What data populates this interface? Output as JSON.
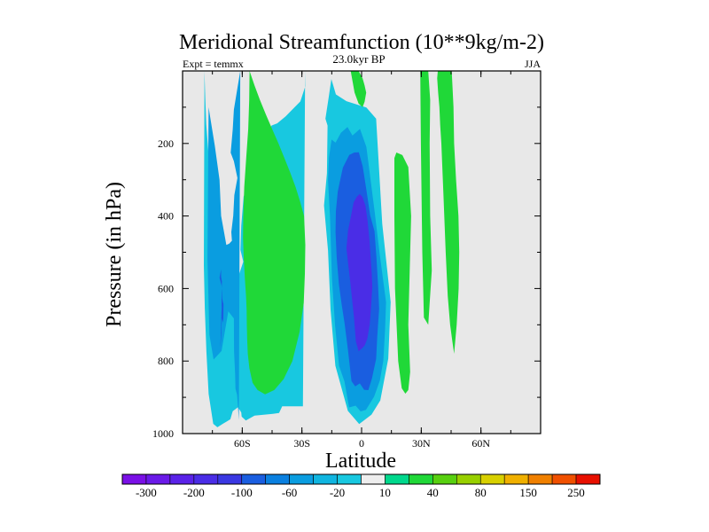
{
  "chart_data": {
    "type": "contour",
    "title": "Meridional Streamfunction (10**9kg/m-2)",
    "subtitle": "23.0kyr BP",
    "left_label": "Expt = temmx",
    "right_label": "JJA",
    "xlabel": "Latitude",
    "ylabel": "Pressure (in hPa)",
    "x_ticks": [
      {
        "value": -60,
        "label": "60S"
      },
      {
        "value": -30,
        "label": "30S"
      },
      {
        "value": 0,
        "label": "0"
      },
      {
        "value": 30,
        "label": "30N"
      },
      {
        "value": 60,
        "label": "60N"
      }
    ],
    "y_ticks": [
      {
        "value": 200,
        "label": "200"
      },
      {
        "value": 400,
        "label": "400"
      },
      {
        "value": 600,
        "label": "600"
      },
      {
        "value": 800,
        "label": "800"
      },
      {
        "value": 1000,
        "label": "1000"
      }
    ],
    "xlim": [
      -90,
      90
    ],
    "ylim": [
      0,
      1000
    ],
    "levels": [
      -300,
      -250,
      -200,
      -150,
      -100,
      -80,
      -60,
      -40,
      -20,
      -10,
      10,
      20,
      40,
      60,
      80,
      100,
      150,
      200,
      250,
      300
    ],
    "colorbar_labels": [
      "-300",
      "-200",
      "-100",
      "-60",
      "-20",
      "10",
      "40",
      "80",
      "150",
      "250"
    ],
    "colors": [
      "#7a10e6",
      "#6a1ae8",
      "#5a22e8",
      "#4a2de6",
      "#3a38e2",
      "#1a5ee0",
      "#0a80e0",
      "#0a9de0",
      "#10b5e0",
      "#18c8e0",
      "#eeeeee",
      "#00d88c",
      "#20d838",
      "#58d010",
      "#98d000",
      "#d8d000",
      "#f0b000",
      "#f08000",
      "#f05000",
      "#e81000"
    ],
    "missing_color": "#e8e8e8",
    "regions": [
      {
        "name": "sh-cell-outer",
        "value": -20,
        "lat": [
          -79,
          -78.6,
          -78.1,
          -77.1,
          -76,
          -73.6,
          -71.3,
          -70.5,
          -69,
          -64,
          -59.5,
          -60.9,
          -60.5,
          -59.3,
          -57.5,
          -56.4,
          -54.1,
          -51.6,
          -51.5,
          -49,
          -47.1,
          -45.2,
          -42.4,
          -38.2,
          -30.8,
          -28.3,
          -28.4,
          -29.5,
          -39.9,
          -41.5,
          -44.6,
          -53.8,
          -58.2,
          -60.3,
          -60.5,
          -62.1,
          -64.8,
          -66,
          -69.6,
          -72.5,
          -74.6,
          -76.9,
          -78,
          -78.8,
          -79.3
        ],
        "p": [
          0,
          72.9,
          145.9,
          220.1,
          301.5,
          377.5,
          458.2,
          538.7,
          576.8,
          601.1,
          525.9,
          493.6,
          427.5,
          345.9,
          325.3,
          287.3,
          269.4,
          248.2,
          213.4,
          188.4,
          167,
          150.4,
          144.4,
          125.1,
          84,
          42.3,
          0,
          925,
          925,
          943.2,
          945.6,
          950.7,
          963.8,
          953.2,
          941.6,
          927.4,
          938.2,
          960.6,
          972.5,
          982.6,
          973.2,
          890.8,
          774,
          655,
          536.7
        ]
      },
      {
        "name": "sh-cell-mid",
        "value": -60,
        "lat": [
          -76.9,
          -76.2,
          -73.8,
          -71.4,
          -70.6,
          -68,
          -66.5,
          -65.2,
          -65.5,
          -64.5,
          -64,
          -62.4,
          -64.2,
          -65.8,
          -64.8,
          -64.2,
          -61,
          -61.7,
          -62.1,
          -62.6,
          -63.4,
          -63.6,
          -64.1,
          -64.2,
          -67,
          -70.4,
          -74.4,
          -76.5,
          -77.5
        ],
        "p": [
          100.1,
          125,
          206.5,
          300.3,
          399.7,
          479.6,
          476.2,
          468.2,
          444.6,
          399.2,
          342.4,
          295,
          248.8,
          225.4,
          161.4,
          106.6,
          0,
          962.3,
          928.8,
          893.1,
          876.3,
          835.9,
          773.3,
          682.5,
          662.8,
          772,
          795.9,
          727.7,
          519.5
        ]
      },
      {
        "name": "sh-cell-inner",
        "value": -100,
        "lat": [
          -70.6,
          -70.6,
          -70.2,
          -70.4,
          -70.4,
          -70.3,
          -70.4,
          -70.5,
          -70.6,
          -71,
          -70.5,
          -70.4,
          -70.2,
          -69.8,
          -69.5,
          -69.4,
          -69.7,
          -70.1,
          -70.4,
          -71.4
        ],
        "p": [
          547.4,
          568.3,
          579.9,
          611,
          652.5,
          646.9,
          658.8,
          666.3,
          704.6,
          764.3,
          723.2,
          700.1,
          682.1,
          694,
          684,
          642.2,
          638.1,
          626.5,
          592,
          570.1
        ]
      },
      {
        "name": "eq-cell-outer",
        "value": -20,
        "lat": [
          -15.2,
          -16.5,
          -18.2,
          -17.1,
          -17.4,
          -18.9,
          -16.9,
          -15.6,
          -13.2,
          -6.9,
          -1.2,
          5,
          9.4,
          13.4,
          14.6,
          10.4,
          7.3,
          2.4,
          -7.6,
          -12.9
        ],
        "p": [
          22.2,
          70.9,
          131.9,
          150.5,
          282.1,
          371,
          494.3,
          658.6,
          812.9,
          937.3,
          973.8,
          947.7,
          908.5,
          793.4,
          637.4,
          421.6,
          131.7,
          100.8,
          83.4,
          64.9
        ]
      },
      {
        "name": "eq-cell-mid",
        "value": -60,
        "lat": [
          -16.9,
          -15.9,
          -14.9,
          -13.3,
          -11.3,
          -8.6,
          -6.3,
          -3,
          -0.5,
          2.2,
          6.3,
          9.2,
          10.9,
          11.8,
          12.3,
          9.2,
          6.6,
          2.4,
          -0.8,
          -4.6,
          -7.1,
          -10.4,
          -13.1,
          -15.1,
          -16.4
        ],
        "p": [
          300.5,
          399.2,
          573.8,
          702.2,
          813.8,
          856.6,
          927.8,
          923.1,
          938.8,
          934.5,
          898.4,
          853.7,
          799.6,
          713.2,
          637.5,
          508.3,
          389.6,
          209.9,
          159.9,
          178.3,
          154.8,
          170.7,
          197.8,
          189.3,
          239.7
        ]
      },
      {
        "name": "eq-cell-inner",
        "value": -100,
        "lat": [
          -13.1,
          -12.5,
          -11.4,
          -10,
          -8.5,
          -6.8,
          -5.1,
          -3.2,
          -0.9,
          1.3,
          3.4,
          5.2,
          7.3,
          7.9,
          8.8,
          8.3,
          7.5,
          6.5,
          4.3,
          2.5,
          0.6,
          -1.4,
          -3.7,
          -6.2,
          -9.4,
          -11,
          -12,
          -12.9
        ],
        "p": [
          444.2,
          513.4,
          588.8,
          645.3,
          697.6,
          770.9,
          855.5,
          870,
          861.5,
          879.1,
          880.3,
          847.6,
          794.4,
          731.9,
          656.1,
          591.3,
          516.1,
          442.3,
          398.3,
          331.2,
          263.9,
          224.4,
          224.9,
          231.9,
          266.4,
          307.1,
          332.9,
          386.7
        ]
      },
      {
        "name": "eq-cell-core",
        "value": -200,
        "lat": [
          -7.6,
          -6.7,
          -5.7,
          -4.7,
          -3.8,
          -2.9,
          -1.5,
          0.3,
          1.6,
          2.9,
          4.1,
          4.8,
          5.4,
          5.1,
          4.7,
          4,
          3,
          1.9,
          0.4,
          -1,
          -2.5,
          -4,
          -5.5,
          -6.8
        ],
        "p": [
          489.3,
          534.8,
          581.1,
          635.8,
          682,
          744.7,
          772.9,
          764.2,
          756.5,
          738.1,
          698.8,
          645.8,
          595,
          557.3,
          524.6,
          469.3,
          412,
          371.5,
          347.1,
          339.2,
          347.9,
          362.9,
          404.2,
          440.8
        ]
      },
      {
        "name": "sh-positive",
        "value": 20,
        "lat": [
          -56.3,
          -53.8,
          -51.1,
          -48.1,
          -45,
          -41.8,
          -38.8,
          -35.9,
          -33.2,
          -30.9,
          -28.9,
          -28.3,
          -28.5,
          -29.1,
          -31.2,
          -34.8,
          -39.2,
          -43.9,
          -48.5,
          -52.3,
          -54.8,
          -56.4,
          -57.2,
          -57.5,
          -57.7,
          -57.8,
          -58.1,
          -58.6,
          -59.2,
          -59.6,
          -59.5,
          -59,
          -58,
          -57,
          -56.5
        ],
        "p": [
          0,
          40,
          80,
          120,
          160,
          200,
          240,
          280,
          320,
          360,
          400,
          480,
          560,
          640,
          720,
          800,
          850,
          880,
          892,
          880,
          860,
          820,
          780,
          740,
          700,
          660,
          620,
          580,
          520,
          460,
          400,
          320,
          240,
          160,
          80
        ]
      },
      {
        "name": "upper-pos-1",
        "value": 20,
        "lat": [
          -5.5,
          -4.5,
          -3.5,
          -1.5,
          0.5,
          1.5,
          2.3,
          1.5,
          0.5,
          -1.5,
          -3.5,
          -5
        ],
        "p": [
          0,
          30,
          60,
          90,
          100,
          85,
          60,
          40,
          20,
          0,
          0,
          0
        ]
      },
      {
        "name": "nh-pos-1",
        "value": 20,
        "lat": [
          16.5,
          17.5,
          20.5,
          23.5,
          24.9,
          24.2,
          23.5,
          24.4,
          23.5,
          22,
          20.2,
          18.4,
          16.8,
          16.5
        ],
        "p": [
          240,
          225,
          232,
          265,
          400,
          550,
          700,
          830,
          880,
          890,
          875,
          800,
          600,
          400
        ]
      },
      {
        "name": "nh-pos-2",
        "value": 20,
        "lat": [
          29.5,
          31.5,
          33.5,
          34.5,
          34.2,
          34.5,
          35.3,
          33.5,
          31.3,
          30.5,
          29.8
        ],
        "p": [
          0,
          0,
          0,
          80,
          200,
          400,
          550,
          700,
          680,
          500,
          200
        ]
      },
      {
        "name": "nh-pos-3",
        "value": 20,
        "lat": [
          38.3,
          40.3,
          42.8,
          45.3,
          46.2,
          46.5,
          47.5,
          48.7,
          49.1,
          48.8,
          47.8,
          46.5,
          45.5,
          44.5,
          43.3,
          42.3,
          41.2,
          40.1,
          39.5,
          39.1,
          38.5,
          38
        ],
        "p": [
          0,
          0,
          0,
          0,
          100,
          200,
          300,
          400,
          500,
          600,
          700,
          780,
          740,
          700,
          620,
          500,
          350,
          200,
          150,
          100,
          60,
          20
        ]
      }
    ]
  }
}
